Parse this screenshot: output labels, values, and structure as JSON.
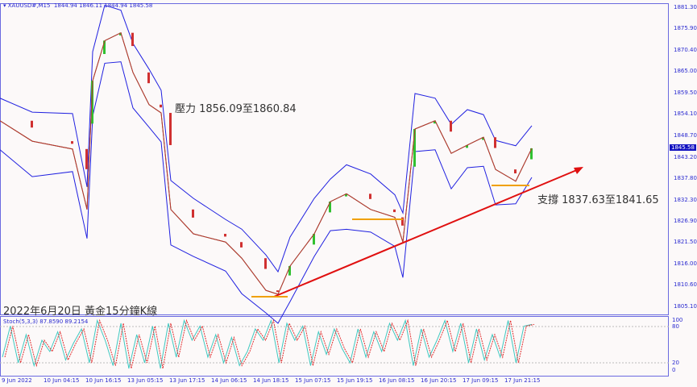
{
  "header": {
    "symbol": "XAUUSD#,M15",
    "ohlc": "1844.94 1846.11 1844.94 1845.58"
  },
  "indicator": {
    "label": "Stoch(5,3,3) 87.8590 89.2154",
    "levels": [
      "100",
      "80",
      "20",
      "0"
    ]
  },
  "annotations": {
    "resistance": "壓力 1856.09至1860.84",
    "support": "支撐 1837.63至1841.65",
    "caption": "2022年6月20日 黃金15分鐘K線"
  },
  "colors": {
    "band": "#2020e0",
    "trend": "#e01010",
    "level": "#f0a000",
    "stoch_main": "#40c8c0",
    "stoch_signal": "#e03030",
    "axis": "#2b2bd0",
    "current_bg": "#1010c0"
  },
  "chart_data": {
    "type": "line",
    "ylim": [
      1803,
      1883
    ],
    "y_ticks": [
      "1881.30",
      "1875.90",
      "1870.40",
      "1865.00",
      "1859.50",
      "1854.10",
      "1848.70",
      "1843.20",
      "1837.80",
      "1832.30",
      "1826.90",
      "1821.50",
      "1816.00",
      "1810.60",
      "1805.10"
    ],
    "current_price": "1845.58",
    "x_ticks": [
      "9 Jun 2022",
      "10 Jun 04:15",
      "10 Jun 16:15",
      "13 Jun 05:15",
      "13 Jun 17:15",
      "14 Jun 06:15",
      "14 Jun 18:15",
      "15 Jun 07:15",
      "15 Jun 19:15",
      "16 Jun 08:15",
      "16 Jun 20:15",
      "17 Jun 09:15",
      "17 Jun 21:15"
    ],
    "price_path": [
      [
        0,
        1852.6
      ],
      [
        40,
        1847.4
      ],
      [
        90,
        1845.4
      ],
      [
        108,
        1830
      ],
      [
        115,
        1862.8
      ],
      [
        130,
        1873
      ],
      [
        150,
        1875
      ],
      [
        165,
        1864.9
      ],
      [
        185,
        1856.7
      ],
      [
        200,
        1854.6
      ],
      [
        212,
        1830
      ],
      [
        240,
        1823.8
      ],
      [
        280,
        1821.7
      ],
      [
        300,
        1817.6
      ],
      [
        330,
        1809.4
      ],
      [
        345,
        1808.4
      ],
      [
        360,
        1815.6
      ],
      [
        390,
        1823.8
      ],
      [
        410,
        1832
      ],
      [
        430,
        1834
      ],
      [
        460,
        1830
      ],
      [
        490,
        1828
      ],
      [
        500,
        1821.7
      ],
      [
        515,
        1850.5
      ],
      [
        540,
        1852.6
      ],
      [
        560,
        1844.3
      ],
      [
        580,
        1846.4
      ],
      [
        600,
        1848.4
      ],
      [
        615,
        1840.2
      ],
      [
        640,
        1837.2
      ],
      [
        660,
        1845.58
      ]
    ],
    "stoch": [
      30,
      85,
      20,
      70,
      15,
      60,
      40,
      75,
      25,
      55,
      80,
      20,
      95,
      60,
      15,
      90,
      10,
      70,
      20,
      85,
      10,
      90,
      30,
      95,
      60,
      85,
      30,
      70,
      20,
      65,
      15,
      40,
      80,
      60,
      95,
      20,
      90,
      60,
      85,
      15,
      75,
      35,
      80,
      45,
      20,
      80,
      30,
      75,
      40,
      90,
      60,
      95,
      15,
      80,
      30,
      60,
      95,
      40,
      90,
      20,
      80,
      25,
      70,
      30,
      95,
      20,
      85,
      88
    ]
  }
}
